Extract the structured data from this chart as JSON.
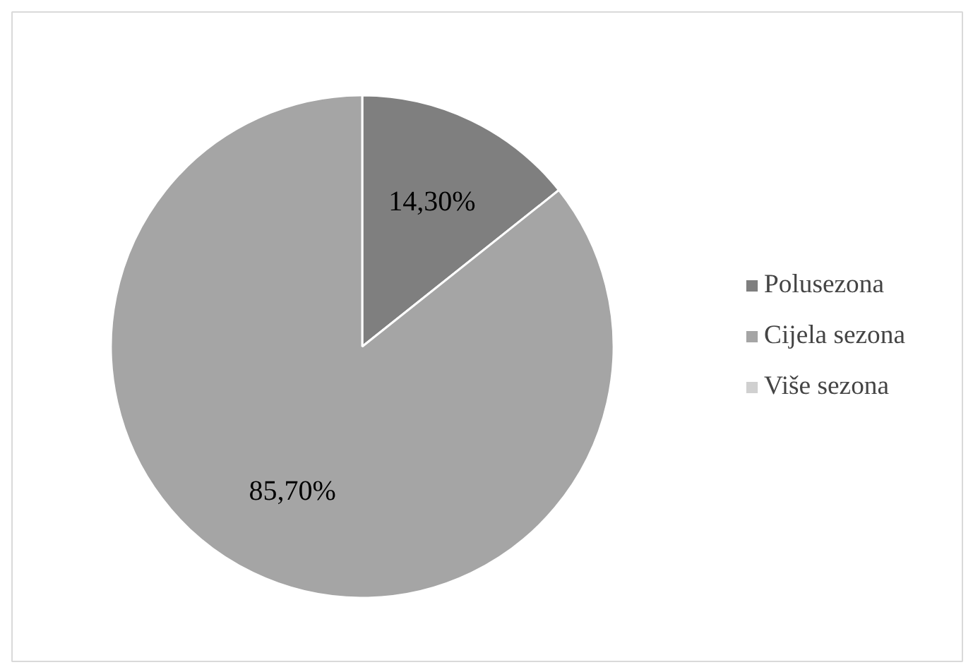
{
  "chart_data": {
    "type": "pie",
    "categories": [
      "Polusezona",
      "Cijela sezona",
      "Više sezona"
    ],
    "values": [
      14.3,
      85.7,
      0
    ],
    "colors": [
      "#7f7f7f",
      "#a5a5a5",
      "#d0d0d0"
    ],
    "value_labels": [
      "14,30%",
      "85,70%",
      null
    ],
    "legend": "right"
  }
}
